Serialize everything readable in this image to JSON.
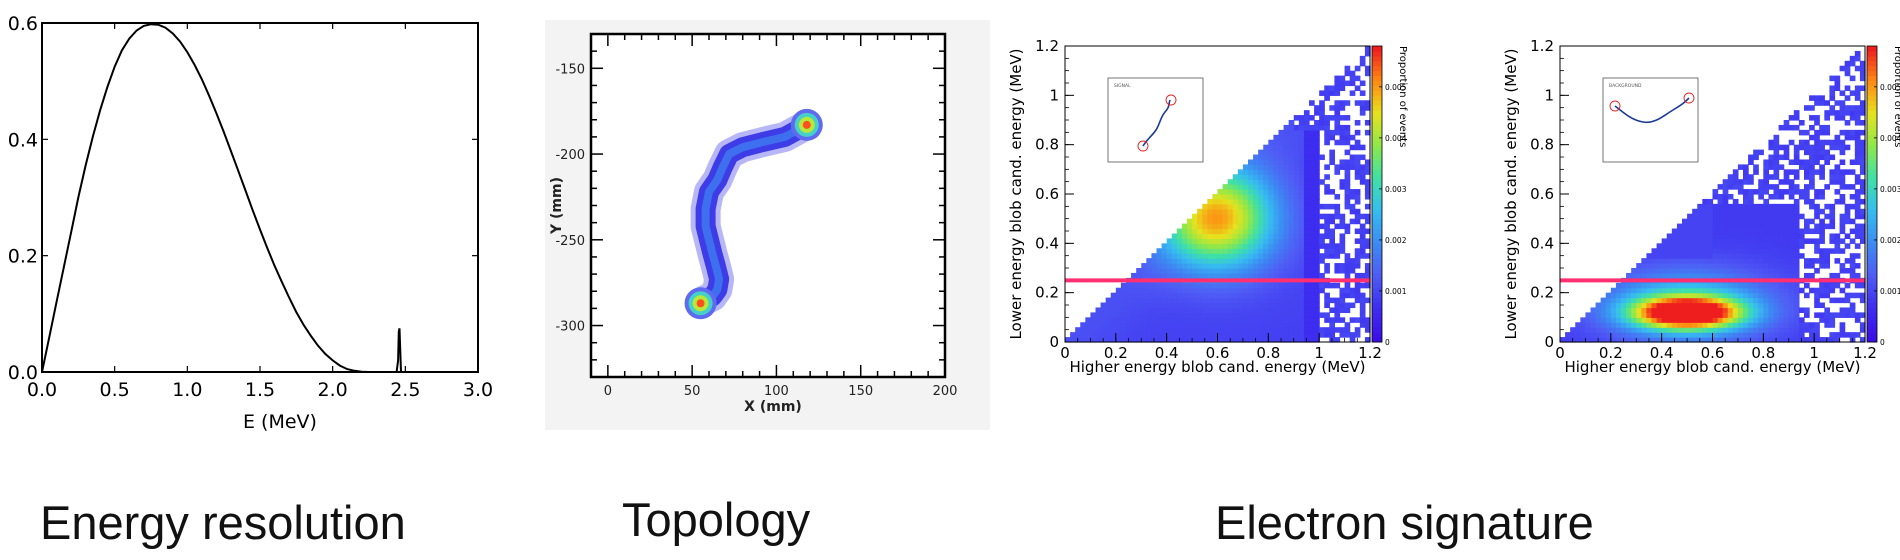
{
  "captions": {
    "energy": "Energy resolution",
    "topology": "Topology",
    "electron": "Electron signature"
  },
  "colors": {
    "cut_line": "#ff2f72",
    "heat_scale": [
      "#3b0ee6",
      "#3d2ff0",
      "#4f5cf5",
      "#3c8cf2",
      "#36bdf0",
      "#3fe0a6",
      "#8ee84a",
      "#e6e21e",
      "#ff8a12",
      "#ee1e1e"
    ]
  },
  "chart_data": [
    {
      "id": "energy-spectrum",
      "type": "line",
      "xlabel": "E (MeV)",
      "ylabel": "",
      "xlim": [
        0.0,
        3.0
      ],
      "ylim": [
        0.0,
        0.6
      ],
      "xticks": [
        "0.0",
        "0.5",
        "1.0",
        "1.5",
        "2.0",
        "2.5",
        "3.0"
      ],
      "yticks": [
        "0.0",
        "0.2",
        "0.4",
        "0.6"
      ],
      "series": [
        {
          "x": [
            0.0,
            0.05,
            0.1,
            0.15,
            0.2,
            0.25,
            0.3,
            0.35,
            0.4,
            0.45,
            0.5,
            0.55,
            0.6,
            0.65,
            0.7,
            0.75,
            0.8,
            0.85,
            0.9,
            0.95,
            1.0,
            1.05,
            1.1,
            1.15,
            1.2,
            1.25,
            1.3,
            1.35,
            1.4,
            1.45,
            1.5,
            1.55,
            1.6,
            1.65,
            1.7,
            1.75,
            1.8,
            1.85,
            1.9,
            1.95,
            2.0,
            2.05,
            2.1,
            2.15,
            2.2,
            2.25,
            2.3,
            2.35,
            2.4,
            2.44,
            2.45,
            2.455,
            2.46,
            2.465,
            2.47,
            2.48,
            2.5,
            2.6,
            2.8,
            3.0
          ],
          "y": [
            0.0,
            0.06,
            0.12,
            0.18,
            0.24,
            0.3,
            0.355,
            0.405,
            0.45,
            0.49,
            0.525,
            0.553,
            0.573,
            0.587,
            0.595,
            0.598,
            0.597,
            0.592,
            0.582,
            0.568,
            0.55,
            0.528,
            0.503,
            0.475,
            0.445,
            0.413,
            0.38,
            0.346,
            0.312,
            0.278,
            0.245,
            0.213,
            0.183,
            0.155,
            0.128,
            0.103,
            0.081,
            0.062,
            0.045,
            0.031,
            0.02,
            0.011,
            0.005,
            0.002,
            0.0005,
            0.0,
            0.0,
            0.0,
            0.0,
            0.0,
            0.02,
            0.07,
            0.075,
            0.04,
            0.0,
            0.0,
            0.0,
            0.0,
            0.0,
            0.0
          ]
        }
      ]
    },
    {
      "id": "topology-track",
      "type": "heatmap",
      "xlabel": "X (mm)",
      "ylabel": "Y (mm)",
      "xlim": [
        -10,
        200
      ],
      "ylim": [
        -330,
        -130
      ],
      "xticks": [
        "0",
        "50",
        "100",
        "150",
        "200"
      ],
      "yticks": [
        "-150",
        "-200",
        "-250",
        "-300"
      ],
      "track": {
        "path_x": [
          118,
          105,
          92,
          80,
          72,
          68,
          65,
          60,
          58,
          58,
          60,
          62,
          64,
          66,
          65,
          62,
          58,
          55
        ],
        "path_y": [
          -183,
          -190,
          -193,
          -196,
          -200,
          -208,
          -215,
          -222,
          -232,
          -242,
          -250,
          -258,
          -265,
          -273,
          -279,
          -283,
          -285,
          -287
        ],
        "blobs": [
          {
            "x": 118,
            "y": -183,
            "label": "end-blob-top"
          },
          {
            "x": 55,
            "y": -287,
            "label": "end-blob-bottom"
          }
        ]
      }
    },
    {
      "id": "blob-signal",
      "type": "heatmap",
      "xlabel": "Higher energy blob cand. energy (MeV)",
      "ylabel": "Lower energy blob cand. energy (MeV)",
      "xlim": [
        0,
        1.2
      ],
      "ylim": [
        0,
        1.2
      ],
      "xticks": [
        "0",
        "0.2",
        "0.4",
        "0.6",
        "0.8",
        "1",
        "1.2"
      ],
      "yticks": [
        "0",
        "0.2",
        "0.4",
        "0.6",
        "0.8",
        "1",
        "1.2"
      ],
      "zlabel": "Proportion of events",
      "zticks": [
        "0",
        "0.001",
        "0.002",
        "0.003",
        "0.004",
        "0.005"
      ],
      "zmax": 0.0058,
      "cut_y": 0.25,
      "peak": {
        "x": 0.6,
        "y": 0.5,
        "z": 0.004
      },
      "inset_label": "SIGNAL"
    },
    {
      "id": "blob-background",
      "type": "heatmap",
      "xlabel": "Higher energy blob cand. energy (MeV)",
      "ylabel": "Lower energy blob cand. energy (MeV)",
      "xlim": [
        0,
        1.2
      ],
      "ylim": [
        0,
        1.2
      ],
      "xticks": [
        "0",
        "0.2",
        "0.4",
        "0.6",
        "0.8",
        "1",
        "1.2"
      ],
      "yticks": [
        "0",
        "0.2",
        "0.4",
        "0.6",
        "0.8",
        "1",
        "1.2"
      ],
      "zlabel": "Proportion of events",
      "zticks": [
        "0",
        "0.001",
        "0.002",
        "0.003",
        "0.004",
        "0.005"
      ],
      "zmax": 0.0058,
      "cut_y": 0.25,
      "peak": {
        "x": 0.5,
        "y": 0.12,
        "z": 0.0055
      },
      "inset_label": "BACKGROUND"
    }
  ]
}
